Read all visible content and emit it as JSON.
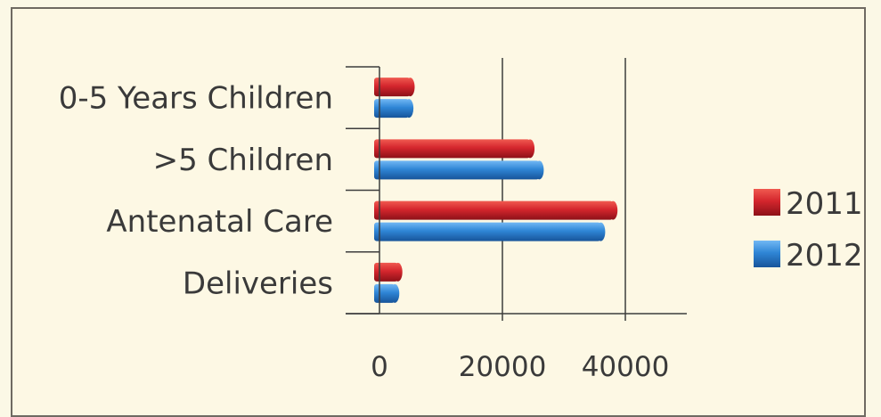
{
  "chart_data": {
    "type": "bar",
    "orientation": "horizontal",
    "categories": [
      "0-5 Years Children",
      ">5 Children",
      "Antenatal Care",
      "Deliveries"
    ],
    "series": [
      {
        "name": "2011",
        "color": "#c8242c",
        "values": [
          5000,
          24500,
          38000,
          3000
        ]
      },
      {
        "name": "2012",
        "color": "#2f86d6",
        "values": [
          4800,
          26000,
          36000,
          2500
        ]
      }
    ],
    "xlim": [
      0,
      50000
    ],
    "xticks": [
      0,
      20000,
      40000
    ],
    "xtick_labels": [
      "0",
      "20000",
      "40000"
    ],
    "grid": "vertical",
    "legend_position": "right"
  }
}
